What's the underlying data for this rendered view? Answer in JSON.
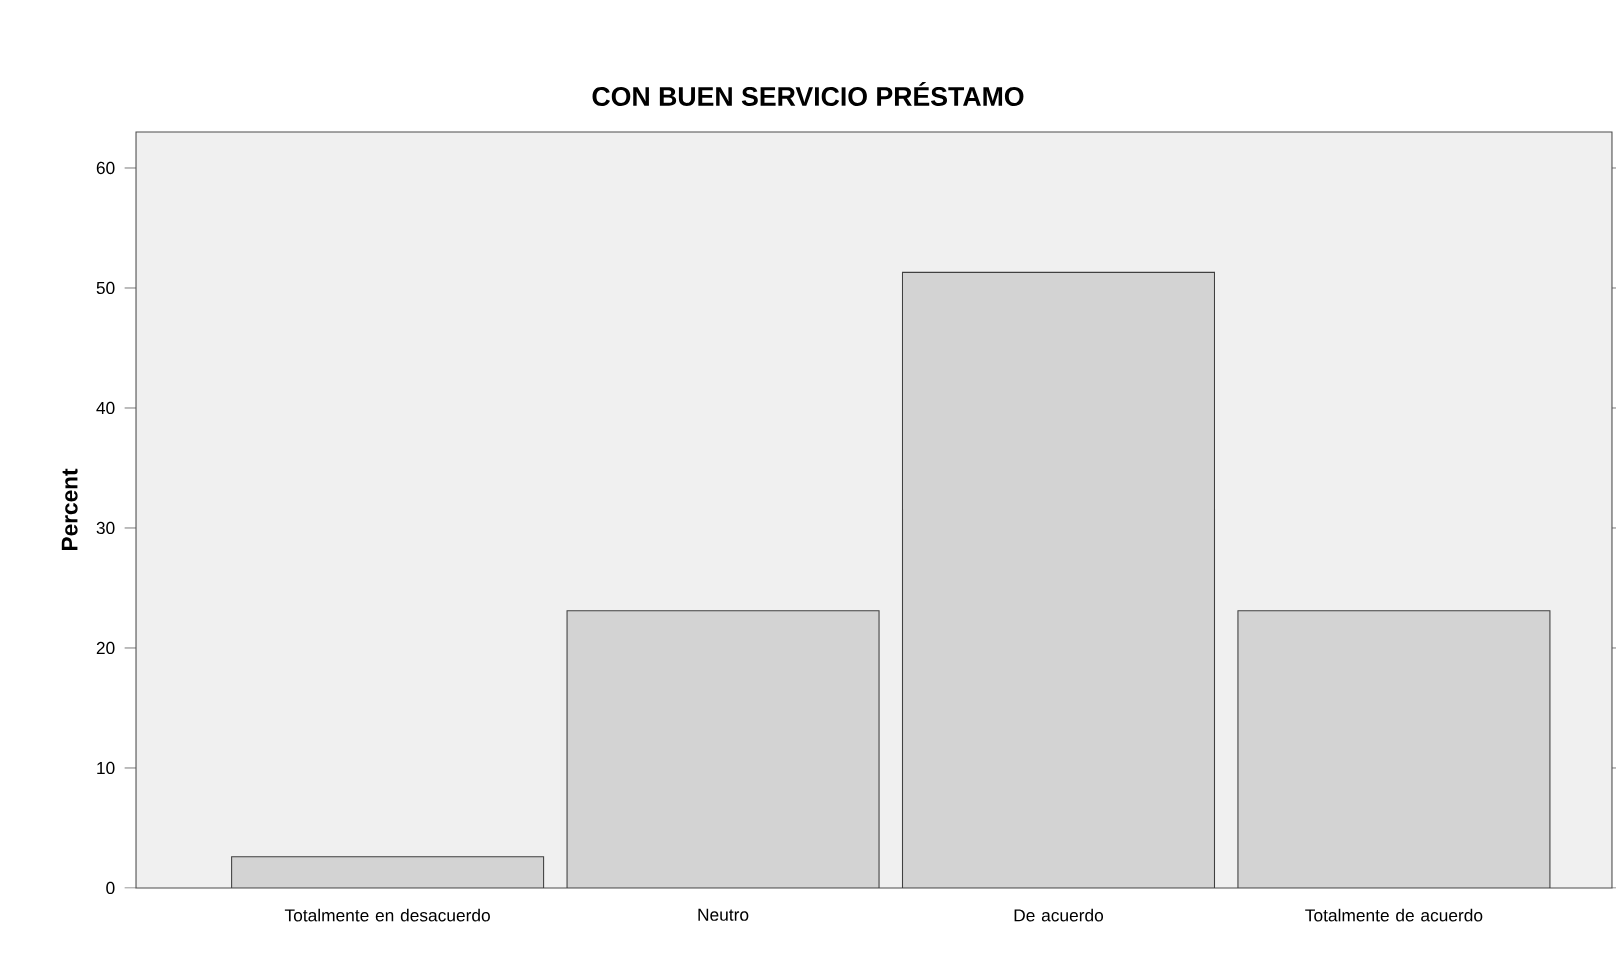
{
  "chart_data": {
    "type": "bar",
    "title": "CON BUEN SERVICIO PRÉSTAMO",
    "ylabel": "Percent",
    "categories": [
      "Totalmente en desacuerdo",
      "Neutro",
      "De acuerdo",
      "Totalmente de acuerdo"
    ],
    "values": [
      2.6,
      23.1,
      51.3,
      23.1
    ],
    "color": "#d3d3d3",
    "ylim": [
      0,
      63
    ],
    "yticks": [
      0,
      10,
      20,
      30,
      40,
      50,
      60
    ],
    "grid": false
  }
}
